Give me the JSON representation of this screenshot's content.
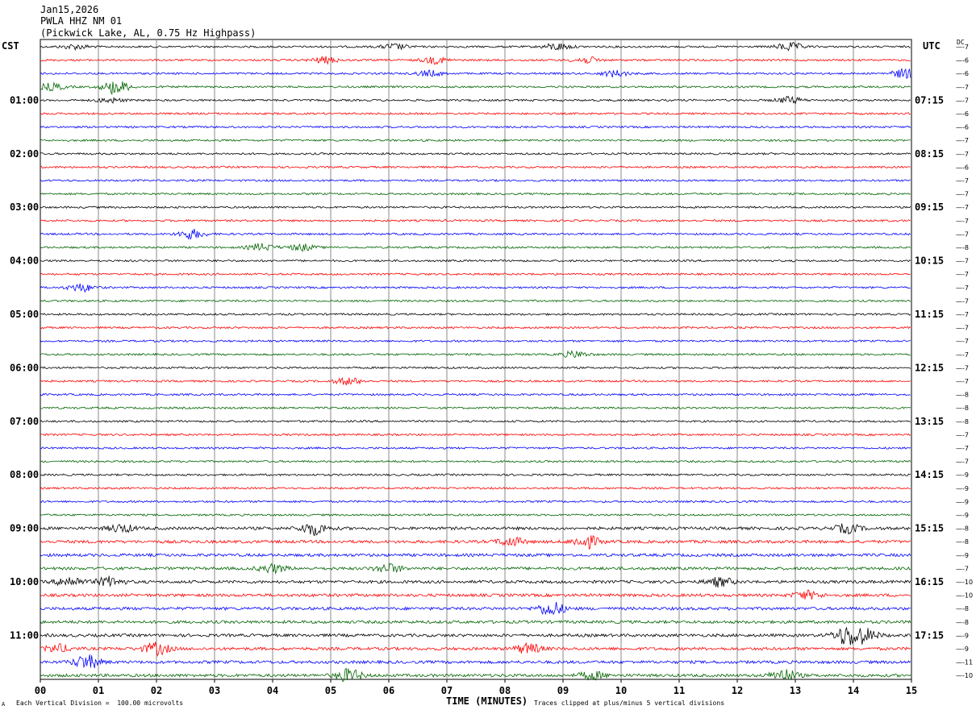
{
  "header": {
    "date": "Jan15,2026",
    "station": "PWLA HHZ NM 01",
    "location": "(Pickwick Lake, AL, 0.75 Hz Highpass)"
  },
  "left_timezone": "CST",
  "right_timezone": "UTC",
  "dc_label": "DC",
  "footer": {
    "scale_note": "Each Vertical Division =  100.00 microvolts",
    "x_axis_title": "TIME (MINUTES)",
    "clip_note": "Traces clipped at plus/minus 5 vertical divisions",
    "corner_mark": "A"
  },
  "chart_data": {
    "type": "line",
    "title": "PWLA HHZ NM 01",
    "xlabel": "TIME (MINUTES)",
    "xlim": [
      0,
      15
    ],
    "x_ticks": [
      "00",
      "01",
      "02",
      "03",
      "04",
      "05",
      "06",
      "07",
      "08",
      "09",
      "10",
      "11",
      "12",
      "13",
      "14",
      "15"
    ],
    "trace_colors": [
      "#000000",
      "#ff0000",
      "#0000ff",
      "#006400"
    ],
    "left_time_labels": [
      "01:00",
      "02:00",
      "03:00",
      "04:00",
      "05:00",
      "06:00",
      "07:00",
      "08:00",
      "09:00",
      "10:00",
      "11:00"
    ],
    "right_time_labels": [
      "07:15",
      "08:15",
      "09:15",
      "10:15",
      "11:15",
      "12:15",
      "13:15",
      "14:15",
      "15:15",
      "16:15",
      "17:15"
    ],
    "hour_label_every_n_traces": 4,
    "first_hour_label_trace": 4,
    "trace_count": 48,
    "dc_offsets": [
      -7,
      -6,
      -6,
      -7,
      -7,
      -6,
      -6,
      -7,
      -7,
      -6,
      -7,
      -7,
      -7,
      -7,
      -7,
      -8,
      -7,
      -7,
      -7,
      -7,
      -7,
      -7,
      -7,
      -7,
      -7,
      -7,
      -8,
      -8,
      -8,
      -7,
      -7,
      -7,
      -9,
      -9,
      -9,
      -9,
      -8,
      -8,
      -9,
      -7,
      -10,
      -10,
      -8,
      -8,
      -9,
      -9,
      -11,
      -10
    ],
    "events": [
      {
        "trace": 0,
        "minute": 6.1,
        "amp": 1.4
      },
      {
        "trace": 0,
        "minute": 8.9,
        "amp": 1.8
      },
      {
        "trace": 0,
        "minute": 12.9,
        "amp": 2.0
      },
      {
        "trace": 0,
        "minute": 0.6,
        "amp": 1.2
      },
      {
        "trace": 1,
        "minute": 4.9,
        "amp": 1.6
      },
      {
        "trace": 1,
        "minute": 6.8,
        "amp": 1.7
      },
      {
        "trace": 1,
        "minute": 9.4,
        "amp": 1.6
      },
      {
        "trace": 2,
        "minute": 6.7,
        "amp": 1.4
      },
      {
        "trace": 2,
        "minute": 9.9,
        "amp": 1.6
      },
      {
        "trace": 2,
        "minute": 14.9,
        "amp": 2.5
      },
      {
        "trace": 3,
        "minute": 0.2,
        "amp": 1.8
      },
      {
        "trace": 3,
        "minute": 1.3,
        "amp": 3.5
      },
      {
        "trace": 4,
        "minute": 12.9,
        "amp": 1.7
      },
      {
        "trace": 4,
        "minute": 1.2,
        "amp": 1.2
      },
      {
        "trace": 14,
        "minute": 2.6,
        "amp": 2.4
      },
      {
        "trace": 15,
        "minute": 3.8,
        "amp": 1.8
      },
      {
        "trace": 15,
        "minute": 4.5,
        "amp": 1.6
      },
      {
        "trace": 18,
        "minute": 0.7,
        "amp": 2.0
      },
      {
        "trace": 23,
        "minute": 9.2,
        "amp": 1.5
      },
      {
        "trace": 25,
        "minute": 5.3,
        "amp": 1.8
      },
      {
        "trace": 36,
        "minute": 4.7,
        "amp": 3.2
      },
      {
        "trace": 36,
        "minute": 1.4,
        "amp": 2.0
      },
      {
        "trace": 36,
        "minute": 13.9,
        "amp": 2.2
      },
      {
        "trace": 37,
        "minute": 8.1,
        "amp": 2.2
      },
      {
        "trace": 37,
        "minute": 9.4,
        "amp": 3.2
      },
      {
        "trace": 39,
        "minute": 6.0,
        "amp": 2.2
      },
      {
        "trace": 39,
        "minute": 4.0,
        "amp": 2.0
      },
      {
        "trace": 40,
        "minute": 0.5,
        "amp": 2.6
      },
      {
        "trace": 40,
        "minute": 1.2,
        "amp": 2.4
      },
      {
        "trace": 40,
        "minute": 11.7,
        "amp": 2.2
      },
      {
        "trace": 41,
        "minute": 13.2,
        "amp": 2.0
      },
      {
        "trace": 42,
        "minute": 8.8,
        "amp": 3.5
      },
      {
        "trace": 44,
        "minute": 13.9,
        "amp": 5.0
      },
      {
        "trace": 44,
        "minute": 14.2,
        "amp": 3.0
      },
      {
        "trace": 45,
        "minute": 2.0,
        "amp": 3.0
      },
      {
        "trace": 45,
        "minute": 0.3,
        "amp": 2.0
      },
      {
        "trace": 45,
        "minute": 8.4,
        "amp": 2.5
      },
      {
        "trace": 46,
        "minute": 0.8,
        "amp": 3.5
      },
      {
        "trace": 47,
        "minute": 5.3,
        "amp": 3.2
      },
      {
        "trace": 47,
        "minute": 12.8,
        "amp": 3.0
      },
      {
        "trace": 47,
        "minute": 9.5,
        "amp": 2.0
      }
    ]
  }
}
